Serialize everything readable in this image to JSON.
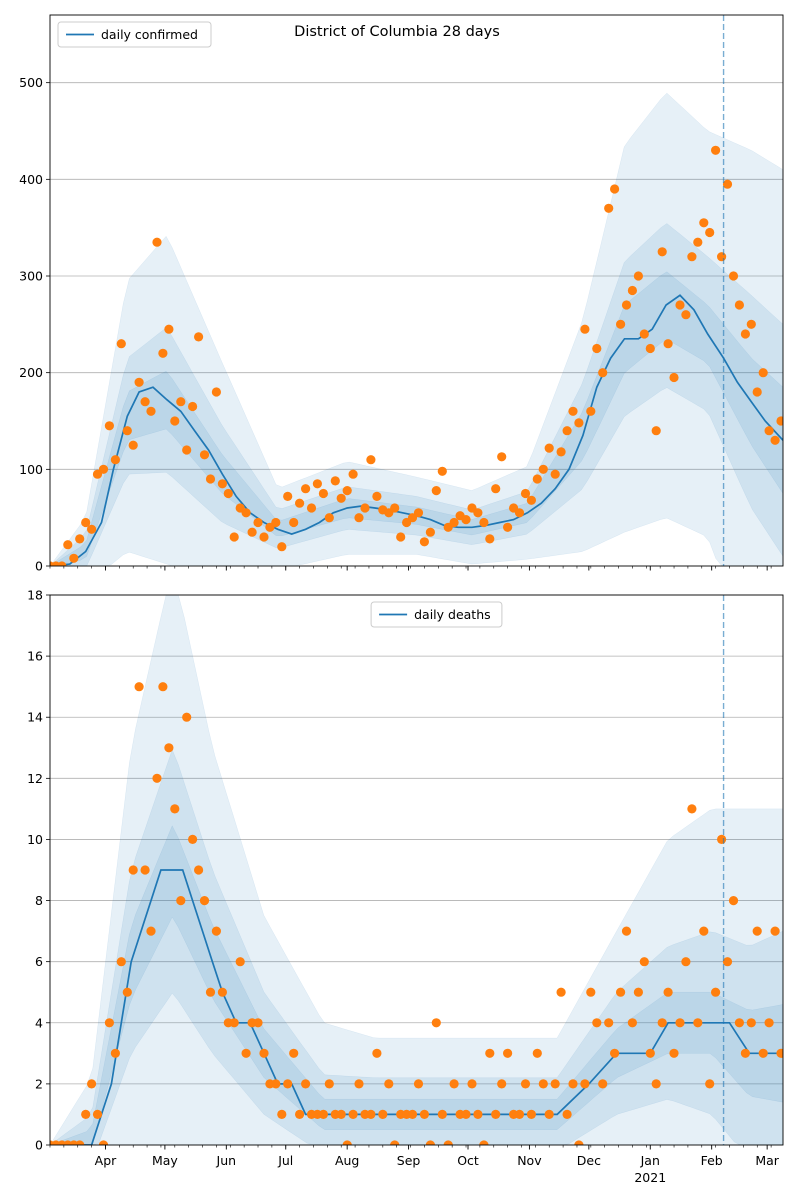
{
  "figure": {
    "title": "District of Columbia 28 days"
  },
  "chart_data": [
    {
      "type": "line",
      "title": "District of Columbia 28 days",
      "legend": {
        "label": "daily confirmed",
        "placement": "top-left"
      },
      "ylim": [
        0,
        570
      ],
      "yticks": [
        0,
        100,
        200,
        300,
        400,
        500
      ],
      "xlim": [
        "2020-03-04",
        "2021-03-09"
      ],
      "grid_y": true,
      "forecast_start": "2021-02-07",
      "colors": {
        "line": "#1f77b4",
        "points": "#ff7f0e",
        "band": "#1f77b4",
        "vline": "#1f77b4"
      },
      "line": {
        "dates": [
          "2020-03-04",
          "2020-03-14",
          "2020-03-22",
          "2020-03-30",
          "2020-04-05",
          "2020-04-12",
          "2020-04-18",
          "2020-04-25",
          "2020-05-02",
          "2020-05-09",
          "2020-05-16",
          "2020-05-23",
          "2020-05-30",
          "2020-06-06",
          "2020-06-13",
          "2020-06-20",
          "2020-06-27",
          "2020-07-04",
          "2020-07-11",
          "2020-07-18",
          "2020-07-25",
          "2020-08-01",
          "2020-08-08",
          "2020-08-15",
          "2020-08-22",
          "2020-08-29",
          "2020-09-05",
          "2020-09-12",
          "2020-09-19",
          "2020-09-26",
          "2020-10-03",
          "2020-10-10",
          "2020-10-17",
          "2020-10-24",
          "2020-10-31",
          "2020-11-07",
          "2020-11-14",
          "2020-11-21",
          "2020-11-28",
          "2020-12-05",
          "2020-12-12",
          "2020-12-19",
          "2020-12-26",
          "2021-01-02",
          "2021-01-09",
          "2021-01-16",
          "2021-01-23",
          "2021-01-30",
          "2021-02-07",
          "2021-02-14",
          "2021-02-21",
          "2021-02-28",
          "2021-03-09"
        ],
        "values": [
          0,
          2,
          15,
          45,
          100,
          155,
          180,
          185,
          172,
          160,
          140,
          120,
          95,
          72,
          55,
          45,
          38,
          33,
          38,
          45,
          55,
          60,
          62,
          60,
          58,
          55,
          52,
          48,
          42,
          40,
          40,
          42,
          45,
          48,
          55,
          65,
          80,
          100,
          135,
          185,
          215,
          235,
          235,
          245,
          270,
          280,
          265,
          240,
          215,
          190,
          170,
          150,
          130
        ]
      },
      "band": {
        "dates": [
          "2020-03-04",
          "2020-03-22",
          "2020-04-12",
          "2020-05-02",
          "2020-05-30",
          "2020-06-27",
          "2020-08-01",
          "2020-09-05",
          "2020-10-03",
          "2020-10-31",
          "2020-11-28",
          "2020-12-19",
          "2021-01-09",
          "2021-01-30",
          "2021-02-21",
          "2021-03-09"
        ],
        "center": [
          0,
          15,
          155,
          172,
          95,
          38,
          60,
          52,
          40,
          55,
          135,
          235,
          270,
          240,
          170,
          130
        ],
        "inner_half": [
          0,
          8,
          25,
          30,
          20,
          8,
          10,
          9,
          8,
          10,
          25,
          35,
          35,
          30,
          45,
          55
        ],
        "mid_half": [
          0,
          18,
          60,
          75,
          50,
          20,
          22,
          20,
          18,
          22,
          55,
          80,
          85,
          80,
          110,
          120
        ],
        "outer_half": [
          0,
          35,
          140,
          170,
          115,
          42,
          48,
          40,
          38,
          48,
          120,
          200,
          220,
          210,
          260,
          280
        ]
      },
      "points": {
        "dates": [
          "2020-03-04",
          "2020-03-07",
          "2020-03-10",
          "2020-03-13",
          "2020-03-16",
          "2020-03-19",
          "2020-03-22",
          "2020-03-25",
          "2020-03-28",
          "2020-03-31",
          "2020-04-03",
          "2020-04-06",
          "2020-04-09",
          "2020-04-12",
          "2020-04-15",
          "2020-04-18",
          "2020-04-21",
          "2020-04-24",
          "2020-04-27",
          "2020-04-30",
          "2020-05-03",
          "2020-05-06",
          "2020-05-09",
          "2020-05-12",
          "2020-05-15",
          "2020-05-18",
          "2020-05-21",
          "2020-05-24",
          "2020-05-27",
          "2020-05-30",
          "2020-06-02",
          "2020-06-05",
          "2020-06-08",
          "2020-06-11",
          "2020-06-14",
          "2020-06-17",
          "2020-06-20",
          "2020-06-23",
          "2020-06-26",
          "2020-06-29",
          "2020-07-02",
          "2020-07-05",
          "2020-07-08",
          "2020-07-11",
          "2020-07-14",
          "2020-07-17",
          "2020-07-20",
          "2020-07-23",
          "2020-07-26",
          "2020-07-29",
          "2020-08-01",
          "2020-08-04",
          "2020-08-07",
          "2020-08-10",
          "2020-08-13",
          "2020-08-16",
          "2020-08-19",
          "2020-08-22",
          "2020-08-25",
          "2020-08-28",
          "2020-08-31",
          "2020-09-03",
          "2020-09-06",
          "2020-09-09",
          "2020-09-12",
          "2020-09-15",
          "2020-09-18",
          "2020-09-21",
          "2020-09-24",
          "2020-09-27",
          "2020-09-30",
          "2020-10-03",
          "2020-10-06",
          "2020-10-09",
          "2020-10-12",
          "2020-10-15",
          "2020-10-18",
          "2020-10-21",
          "2020-10-24",
          "2020-10-27",
          "2020-10-30",
          "2020-11-02",
          "2020-11-05",
          "2020-11-08",
          "2020-11-11",
          "2020-11-14",
          "2020-11-17",
          "2020-11-20",
          "2020-11-23",
          "2020-11-26",
          "2020-11-29",
          "2020-12-02",
          "2020-12-05",
          "2020-12-08",
          "2020-12-11",
          "2020-12-14",
          "2020-12-17",
          "2020-12-20",
          "2020-12-23",
          "2020-12-26",
          "2020-12-29",
          "2021-01-01",
          "2021-01-04",
          "2021-01-07",
          "2021-01-10",
          "2021-01-13",
          "2021-01-16",
          "2021-01-19",
          "2021-01-22",
          "2021-01-25",
          "2021-01-28",
          "2021-01-31",
          "2021-02-03",
          "2021-02-06",
          "2021-02-09",
          "2021-02-12",
          "2021-02-15",
          "2021-02-18",
          "2021-02-21",
          "2021-02-24",
          "2021-02-27",
          "2021-03-02",
          "2021-03-05",
          "2021-03-08"
        ],
        "values": [
          0,
          0,
          0,
          22,
          8,
          28,
          45,
          38,
          95,
          100,
          145,
          110,
          230,
          140,
          125,
          190,
          170,
          160,
          335,
          220,
          245,
          150,
          170,
          120,
          165,
          237,
          115,
          90,
          180,
          85,
          75,
          30,
          60,
          55,
          35,
          45,
          30,
          40,
          45,
          20,
          72,
          45,
          65,
          80,
          60,
          85,
          75,
          50,
          88,
          70,
          78,
          95,
          50,
          60,
          110,
          72,
          58,
          55,
          60,
          30,
          45,
          50,
          55,
          25,
          35,
          78,
          98,
          40,
          45,
          52,
          48,
          60,
          55,
          45,
          28,
          80,
          113,
          40,
          60,
          55,
          75,
          68,
          90,
          100,
          122,
          95,
          118,
          140,
          160,
          148,
          245,
          160,
          225,
          200,
          370,
          390,
          250,
          270,
          285,
          300,
          240,
          225,
          140,
          325,
          230,
          195,
          270,
          260,
          320,
          335,
          355,
          345,
          430,
          320,
          395,
          300,
          270,
          240,
          250,
          180,
          200,
          140,
          130,
          150
        ]
      }
    },
    {
      "type": "line",
      "title": "",
      "legend": {
        "label": "daily deaths",
        "placement": "top-center"
      },
      "ylim": [
        0,
        18
      ],
      "yticks": [
        0,
        2,
        4,
        6,
        8,
        10,
        12,
        14,
        16,
        18
      ],
      "xlim": [
        "2020-03-04",
        "2021-03-09"
      ],
      "grid_y": true,
      "forecast_start": "2021-02-07",
      "xticks": [
        {
          "date": "2020-04-01",
          "label": "Apr",
          "sub": ""
        },
        {
          "date": "2020-05-01",
          "label": "May",
          "sub": ""
        },
        {
          "date": "2020-06-01",
          "label": "Jun",
          "sub": ""
        },
        {
          "date": "2020-07-01",
          "label": "Jul",
          "sub": ""
        },
        {
          "date": "2020-08-01",
          "label": "Aug",
          "sub": ""
        },
        {
          "date": "2020-09-01",
          "label": "Sep",
          "sub": ""
        },
        {
          "date": "2020-10-01",
          "label": "Oct",
          "sub": ""
        },
        {
          "date": "2020-11-01",
          "label": "Nov",
          "sub": ""
        },
        {
          "date": "2020-12-01",
          "label": "Dec",
          "sub": ""
        },
        {
          "date": "2021-01-01",
          "label": "Jan",
          "sub": "2021"
        },
        {
          "date": "2021-02-01",
          "label": "Feb",
          "sub": ""
        },
        {
          "date": "2021-03-01",
          "label": "Mar",
          "sub": ""
        }
      ],
      "colors": {
        "line": "#1f77b4",
        "points": "#ff7f0e",
        "band": "#1f77b4",
        "vline": "#1f77b4"
      },
      "line": {
        "dates": [
          "2020-03-04",
          "2020-03-18",
          "2020-03-25",
          "2020-03-30",
          "2020-04-04",
          "2020-04-09",
          "2020-04-14",
          "2020-04-19",
          "2020-04-24",
          "2020-04-29",
          "2020-05-05",
          "2020-05-10",
          "2020-05-15",
          "2020-05-20",
          "2020-05-25",
          "2020-05-30",
          "2020-06-06",
          "2020-06-13",
          "2020-06-20",
          "2020-06-27",
          "2020-07-04",
          "2020-07-11",
          "2020-07-20",
          "2020-08-01",
          "2020-08-15",
          "2020-09-01",
          "2020-09-15",
          "2020-10-01",
          "2020-10-15",
          "2020-11-01",
          "2020-11-15",
          "2020-12-01",
          "2020-12-15",
          "2021-01-01",
          "2021-01-10",
          "2021-01-20",
          "2021-02-01",
          "2021-02-10",
          "2021-02-20",
          "2021-03-01",
          "2021-03-09"
        ],
        "values": [
          0,
          0,
          0,
          1,
          2,
          4,
          6,
          7,
          8,
          9,
          9,
          9,
          8,
          7,
          6,
          5,
          4,
          4,
          3,
          2,
          2,
          1,
          1,
          1,
          1,
          1,
          1,
          1,
          1,
          1,
          1,
          2,
          3,
          3,
          4,
          4,
          4,
          4,
          3,
          3,
          3
        ]
      },
      "band": {
        "dates": [
          "2020-03-04",
          "2020-03-25",
          "2020-04-14",
          "2020-05-05",
          "2020-05-25",
          "2020-06-20",
          "2020-07-20",
          "2020-08-15",
          "2020-09-15",
          "2020-10-15",
          "2020-11-15",
          "2020-12-15",
          "2021-01-10",
          "2021-02-01",
          "2021-02-20",
          "2021-03-09"
        ],
        "center": [
          0,
          0.2,
          6,
          9,
          6,
          3,
          1,
          1,
          1,
          1,
          1,
          3,
          4,
          4,
          3,
          3
        ],
        "inner_half": [
          0,
          0.3,
          1.2,
          1.5,
          1.2,
          0.8,
          0.5,
          0.5,
          0.5,
          0.5,
          0.5,
          0.8,
          1,
          1,
          1.4,
          1.6
        ],
        "mid_half": [
          0,
          0.8,
          3,
          4,
          3,
          2,
          1.3,
          1.2,
          1.2,
          1.2,
          1.2,
          2,
          2.5,
          3,
          3.5,
          4
        ],
        "outer_half": [
          0,
          2,
          7,
          10,
          7,
          4.5,
          3,
          2.5,
          2.5,
          2.5,
          2.5,
          4,
          6,
          7,
          8,
          8
        ]
      },
      "points": {
        "dates": [
          "2020-03-04",
          "2020-03-07",
          "2020-03-10",
          "2020-03-13",
          "2020-03-16",
          "2020-03-19",
          "2020-03-22",
          "2020-03-25",
          "2020-03-28",
          "2020-03-31",
          "2020-04-03",
          "2020-04-06",
          "2020-04-09",
          "2020-04-12",
          "2020-04-15",
          "2020-04-18",
          "2020-04-21",
          "2020-04-24",
          "2020-04-27",
          "2020-04-30",
          "2020-05-03",
          "2020-05-06",
          "2020-05-09",
          "2020-05-12",
          "2020-05-15",
          "2020-05-18",
          "2020-05-21",
          "2020-05-24",
          "2020-05-27",
          "2020-05-30",
          "2020-06-02",
          "2020-06-05",
          "2020-06-08",
          "2020-06-11",
          "2020-06-14",
          "2020-06-17",
          "2020-06-20",
          "2020-06-23",
          "2020-06-26",
          "2020-06-29",
          "2020-07-02",
          "2020-07-05",
          "2020-07-08",
          "2020-07-11",
          "2020-07-14",
          "2020-07-17",
          "2020-07-20",
          "2020-07-23",
          "2020-07-26",
          "2020-07-29",
          "2020-08-01",
          "2020-08-04",
          "2020-08-07",
          "2020-08-10",
          "2020-08-13",
          "2020-08-16",
          "2020-08-19",
          "2020-08-22",
          "2020-08-25",
          "2020-08-28",
          "2020-08-31",
          "2020-09-03",
          "2020-09-06",
          "2020-09-09",
          "2020-09-12",
          "2020-09-15",
          "2020-09-18",
          "2020-09-21",
          "2020-09-24",
          "2020-09-27",
          "2020-09-30",
          "2020-10-03",
          "2020-10-06",
          "2020-10-09",
          "2020-10-12",
          "2020-10-15",
          "2020-10-18",
          "2020-10-21",
          "2020-10-24",
          "2020-10-27",
          "2020-10-30",
          "2020-11-02",
          "2020-11-05",
          "2020-11-08",
          "2020-11-11",
          "2020-11-14",
          "2020-11-17",
          "2020-11-20",
          "2020-11-23",
          "2020-11-26",
          "2020-11-29",
          "2020-12-02",
          "2020-12-05",
          "2020-12-08",
          "2020-12-11",
          "2020-12-14",
          "2020-12-17",
          "2020-12-20",
          "2020-12-23",
          "2020-12-26",
          "2020-12-29",
          "2021-01-01",
          "2021-01-04",
          "2021-01-07",
          "2021-01-10",
          "2021-01-13",
          "2021-01-16",
          "2021-01-19",
          "2021-01-22",
          "2021-01-25",
          "2021-01-28",
          "2021-01-31",
          "2021-02-03",
          "2021-02-06",
          "2021-02-09",
          "2021-02-12",
          "2021-02-15",
          "2021-02-18",
          "2021-02-21",
          "2021-02-24",
          "2021-02-27",
          "2021-03-02",
          "2021-03-05",
          "2021-03-08"
        ],
        "values": [
          0,
          0,
          0,
          0,
          0,
          0,
          1,
          2,
          1,
          0,
          4,
          3,
          6,
          5,
          9,
          15,
          9,
          7,
          12,
          15,
          13,
          11,
          8,
          14,
          10,
          9,
          8,
          5,
          7,
          5,
          4,
          4,
          6,
          3,
          4,
          4,
          3,
          2,
          2,
          1,
          2,
          3,
          1,
          2,
          1,
          1,
          1,
          2,
          1,
          1,
          0,
          1,
          2,
          1,
          1,
          3,
          1,
          2,
          0,
          1,
          1,
          1,
          2,
          1,
          0,
          4,
          1,
          0,
          2,
          1,
          1,
          2,
          1,
          0,
          3,
          1,
          2,
          3,
          1,
          1,
          2,
          1,
          3,
          2,
          1,
          2,
          5,
          1,
          2,
          0,
          2,
          5,
          4,
          2,
          4,
          3,
          5,
          7,
          4,
          5,
          6,
          3,
          2,
          4,
          5,
          3,
          4,
          6,
          11,
          4,
          7,
          2,
          5,
          10,
          6,
          8,
          4,
          3,
          4,
          7,
          3,
          4,
          7,
          3
        ]
      }
    }
  ]
}
